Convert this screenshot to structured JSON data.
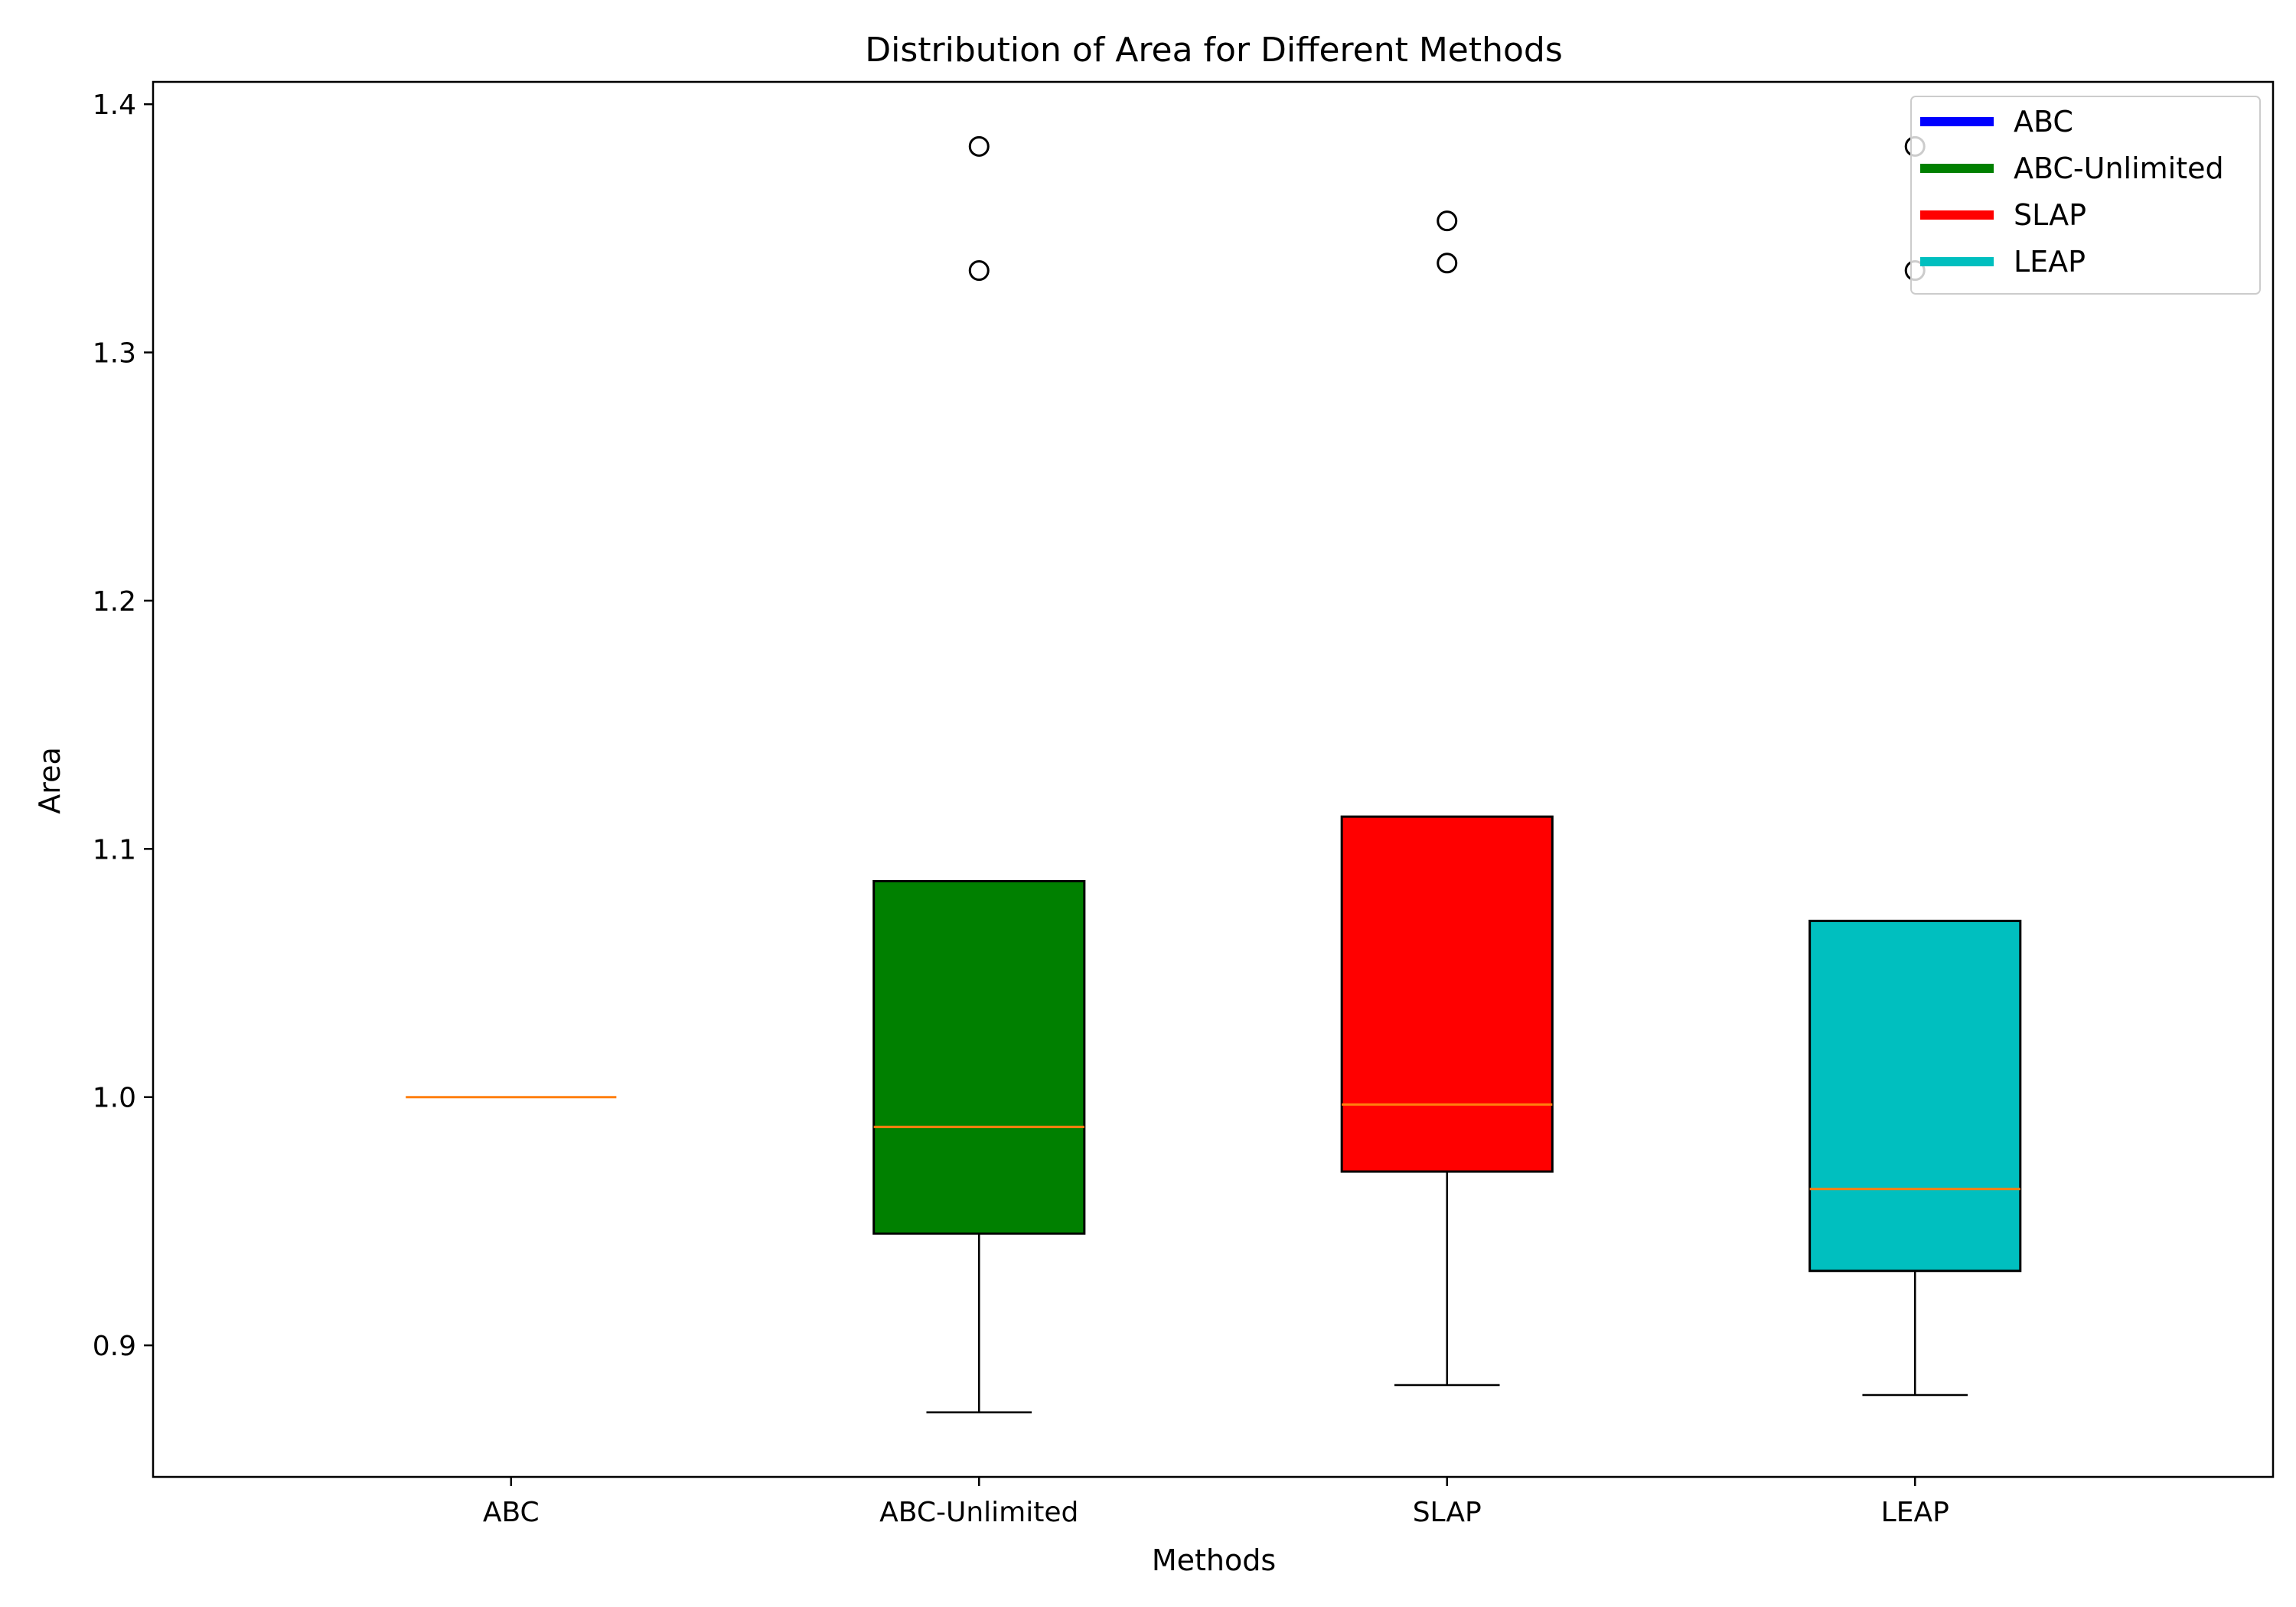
{
  "chart_data": {
    "type": "boxplot",
    "title": "Distribution of Area for Different Methods",
    "xlabel": "Methods",
    "ylabel": "Area",
    "ylim": [
      0.847,
      1.409
    ],
    "yticks": [
      0.9,
      1.0,
      1.1,
      1.2,
      1.3,
      1.4
    ],
    "ytick_labels": [
      "0.9",
      "1.0",
      "1.1",
      "1.2",
      "1.3",
      "1.4"
    ],
    "categories": [
      "ABC",
      "ABC-Unlimited",
      "SLAP",
      "LEAP"
    ],
    "series": [
      {
        "name": "ABC",
        "color": "#0000ff",
        "whislo": 1.0,
        "q1": 1.0,
        "median": 1.0,
        "q3": 1.0,
        "whishi": 1.0,
        "fliers": []
      },
      {
        "name": "ABC-Unlimited",
        "color": "#008000",
        "whislo": 0.873,
        "q1": 0.945,
        "median": 0.988,
        "q3": 1.087,
        "whishi": 1.087,
        "fliers": [
          1.333,
          1.383
        ]
      },
      {
        "name": "SLAP",
        "color": "#ff0000",
        "whislo": 0.884,
        "q1": 0.97,
        "median": 0.997,
        "q3": 1.113,
        "whishi": 1.113,
        "fliers": [
          1.336,
          1.353
        ]
      },
      {
        "name": "LEAP",
        "color": "#00bfbf",
        "whislo": 0.88,
        "q1": 0.93,
        "median": 0.963,
        "q3": 1.071,
        "whishi": 1.071,
        "fliers": [
          1.333,
          1.383
        ]
      }
    ],
    "median_color": "#ff7f0e",
    "legend_position": "top-right",
    "grid": false
  }
}
